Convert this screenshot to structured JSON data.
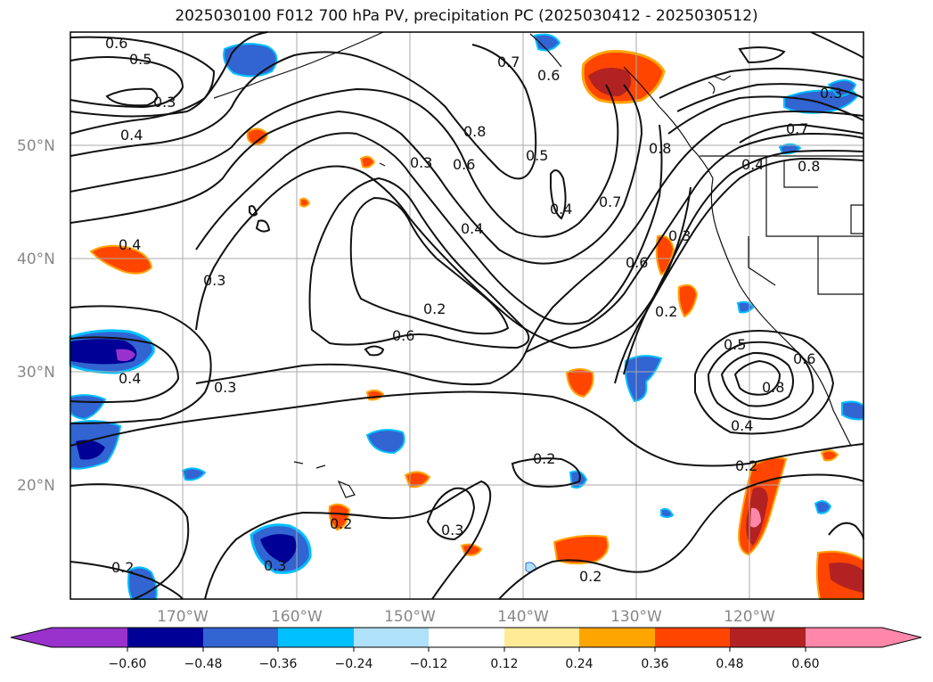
{
  "title": "2025030100 F012 700 hPa PV, precipitation PC (2025030412 - 2025030512)",
  "map": {
    "lat_labels": [
      "50°N",
      "40°N",
      "30°N",
      "20°N"
    ],
    "lon_labels": [
      "170°W",
      "160°W",
      "150°W",
      "140°W",
      "130°W",
      "120°W"
    ],
    "contour_labels": [
      "0.6",
      "0.5",
      "0.3",
      "0.4",
      "0.7",
      "0.8",
      "0.3",
      "0.6",
      "0.5",
      "0.4",
      "0.4",
      "0.7",
      "0.8",
      "0.6",
      "0.8",
      "0.4",
      "0.3",
      "0.4",
      "0.3",
      "0.6",
      "0.2",
      "0.2",
      "0.6",
      "0.3",
      "0.4",
      "0.5",
      "0.7",
      "0.8",
      "0.6",
      "0.4",
      "0.2",
      "0.2",
      "0.2",
      "0.3",
      "0.2",
      "0.3",
      "0.2",
      "0.3"
    ]
  },
  "colorbar": {
    "ticks": [
      "−0.60",
      "−0.48",
      "−0.36",
      "−0.24",
      "−0.12",
      "0.12",
      "0.24",
      "0.36",
      "0.48",
      "0.60"
    ],
    "colors": [
      "#9932cc",
      "#000096",
      "#3264d2",
      "#00bfff",
      "#afe1fa",
      "#ffffff",
      "#ffeb96",
      "#ffa500",
      "#ff4500",
      "#b22222",
      "#ff88aa"
    ]
  }
}
